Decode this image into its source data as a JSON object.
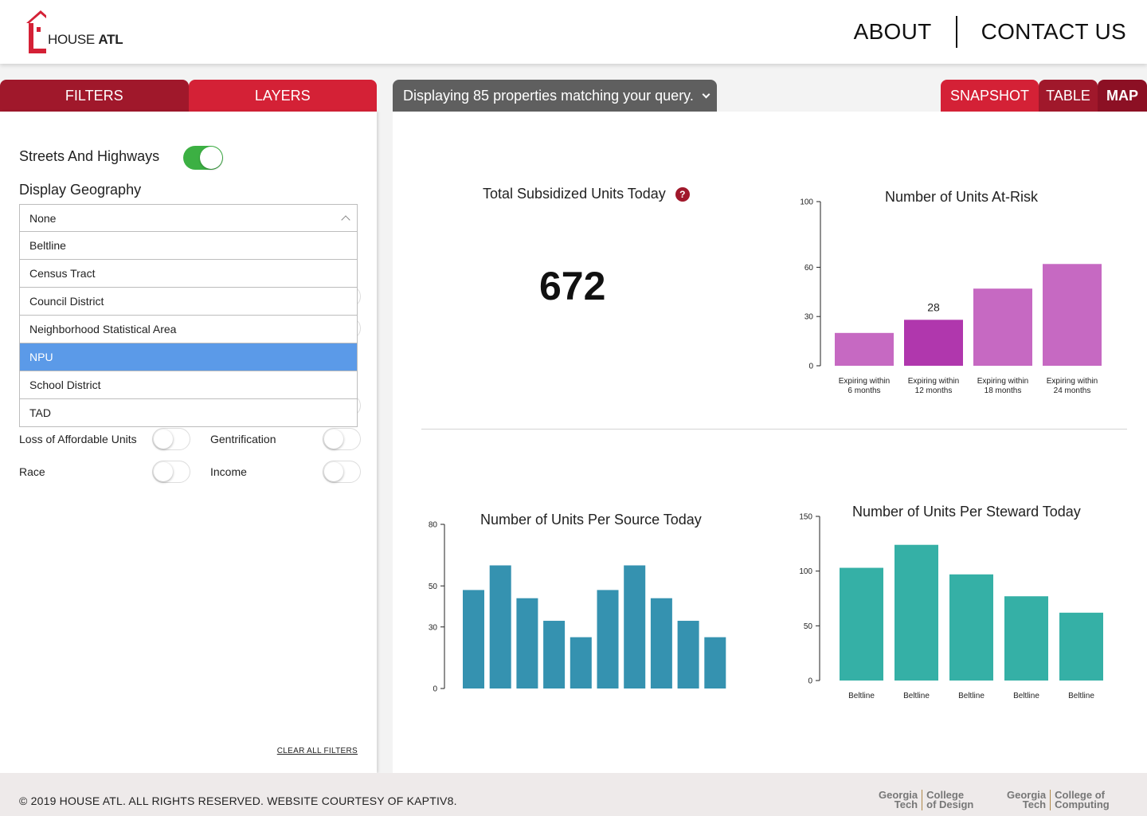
{
  "header": {
    "logo_text_light": "HOUSE",
    "logo_text_bold": "ATL",
    "nav": {
      "about": "ABOUT",
      "contact": "CONTACT US"
    },
    "brand_color": "#d42136"
  },
  "left_panel": {
    "tabs": {
      "filters": "FILTERS",
      "layers": "LAYERS"
    },
    "streets_label": "Streets And Highways",
    "display_geography_label": "Display Geography",
    "geography_selected": "None",
    "geography_options": [
      "Beltline",
      "Census Tract",
      "Council District",
      "Neighborhood Statistical Area",
      "NPU",
      "School District",
      "TAD"
    ],
    "highlighted_option": "NPU",
    "layer_toggles": {
      "loss": "Loss of Affordable Units",
      "gentrification": "Gentrification",
      "race": "Race",
      "income": "Income"
    },
    "clear_filters": "CLEAR ALL FILTERS"
  },
  "query": {
    "text": "Displaying 85 properties matching your query."
  },
  "view_tabs": {
    "snapshot": "SNAPSHOT",
    "table": "TABLE",
    "map": "MAP"
  },
  "kpi": {
    "title": "Total Subsidized Units Today",
    "value": "672",
    "help": "?"
  },
  "chart_data": [
    {
      "type": "bar",
      "title": "Number of Units At-Risk",
      "categories": [
        [
          "Expiring within",
          "6 months"
        ],
        [
          "Expiring within",
          "12 months"
        ],
        [
          "Expiring within",
          "18 months"
        ],
        [
          "Expiring within",
          "24 months"
        ]
      ],
      "values": [
        20,
        28,
        47,
        62
      ],
      "data_labels": [
        "",
        "28",
        "",
        ""
      ],
      "yticks": [
        "0",
        "30",
        "60",
        "100"
      ],
      "ylim": [
        0,
        100
      ],
      "colors": [
        "#c669c2",
        "#b037ad",
        "#c669c2",
        "#c669c2"
      ]
    },
    {
      "type": "bar",
      "title": "Number of Units Per Source Today",
      "categories": [
        "",
        "",
        "",
        "",
        "",
        "",
        "",
        "",
        "",
        ""
      ],
      "values": [
        48,
        60,
        44,
        33,
        25,
        48,
        60,
        44,
        33,
        25
      ],
      "yticks": [
        "0",
        "30",
        "50",
        "80"
      ],
      "ylim": [
        0,
        80
      ],
      "colors": [
        "#3592b0"
      ]
    },
    {
      "type": "bar",
      "title": "Number of Units Per Steward Today",
      "categories": [
        "Beltline",
        "Beltline",
        "Beltline",
        "Beltline",
        "Beltline"
      ],
      "values": [
        103,
        124,
        97,
        77,
        62
      ],
      "yticks": [
        "0",
        "50",
        "100",
        "150"
      ],
      "ylim": [
        0,
        150
      ],
      "colors": [
        "#35b0a6"
      ]
    }
  ],
  "footer": {
    "copyright": "© 2019 HOUSE ATL. ALL RIGHTS RESERVED. WEBSITE COURTESY OF KAPTIV8.",
    "logos": [
      {
        "left1": "Georgia",
        "left2": "Tech",
        "right1": "College",
        "right2": "of Design"
      },
      {
        "left1": "Georgia",
        "left2": "Tech",
        "right1": "College of",
        "right2": "Computing"
      }
    ]
  }
}
